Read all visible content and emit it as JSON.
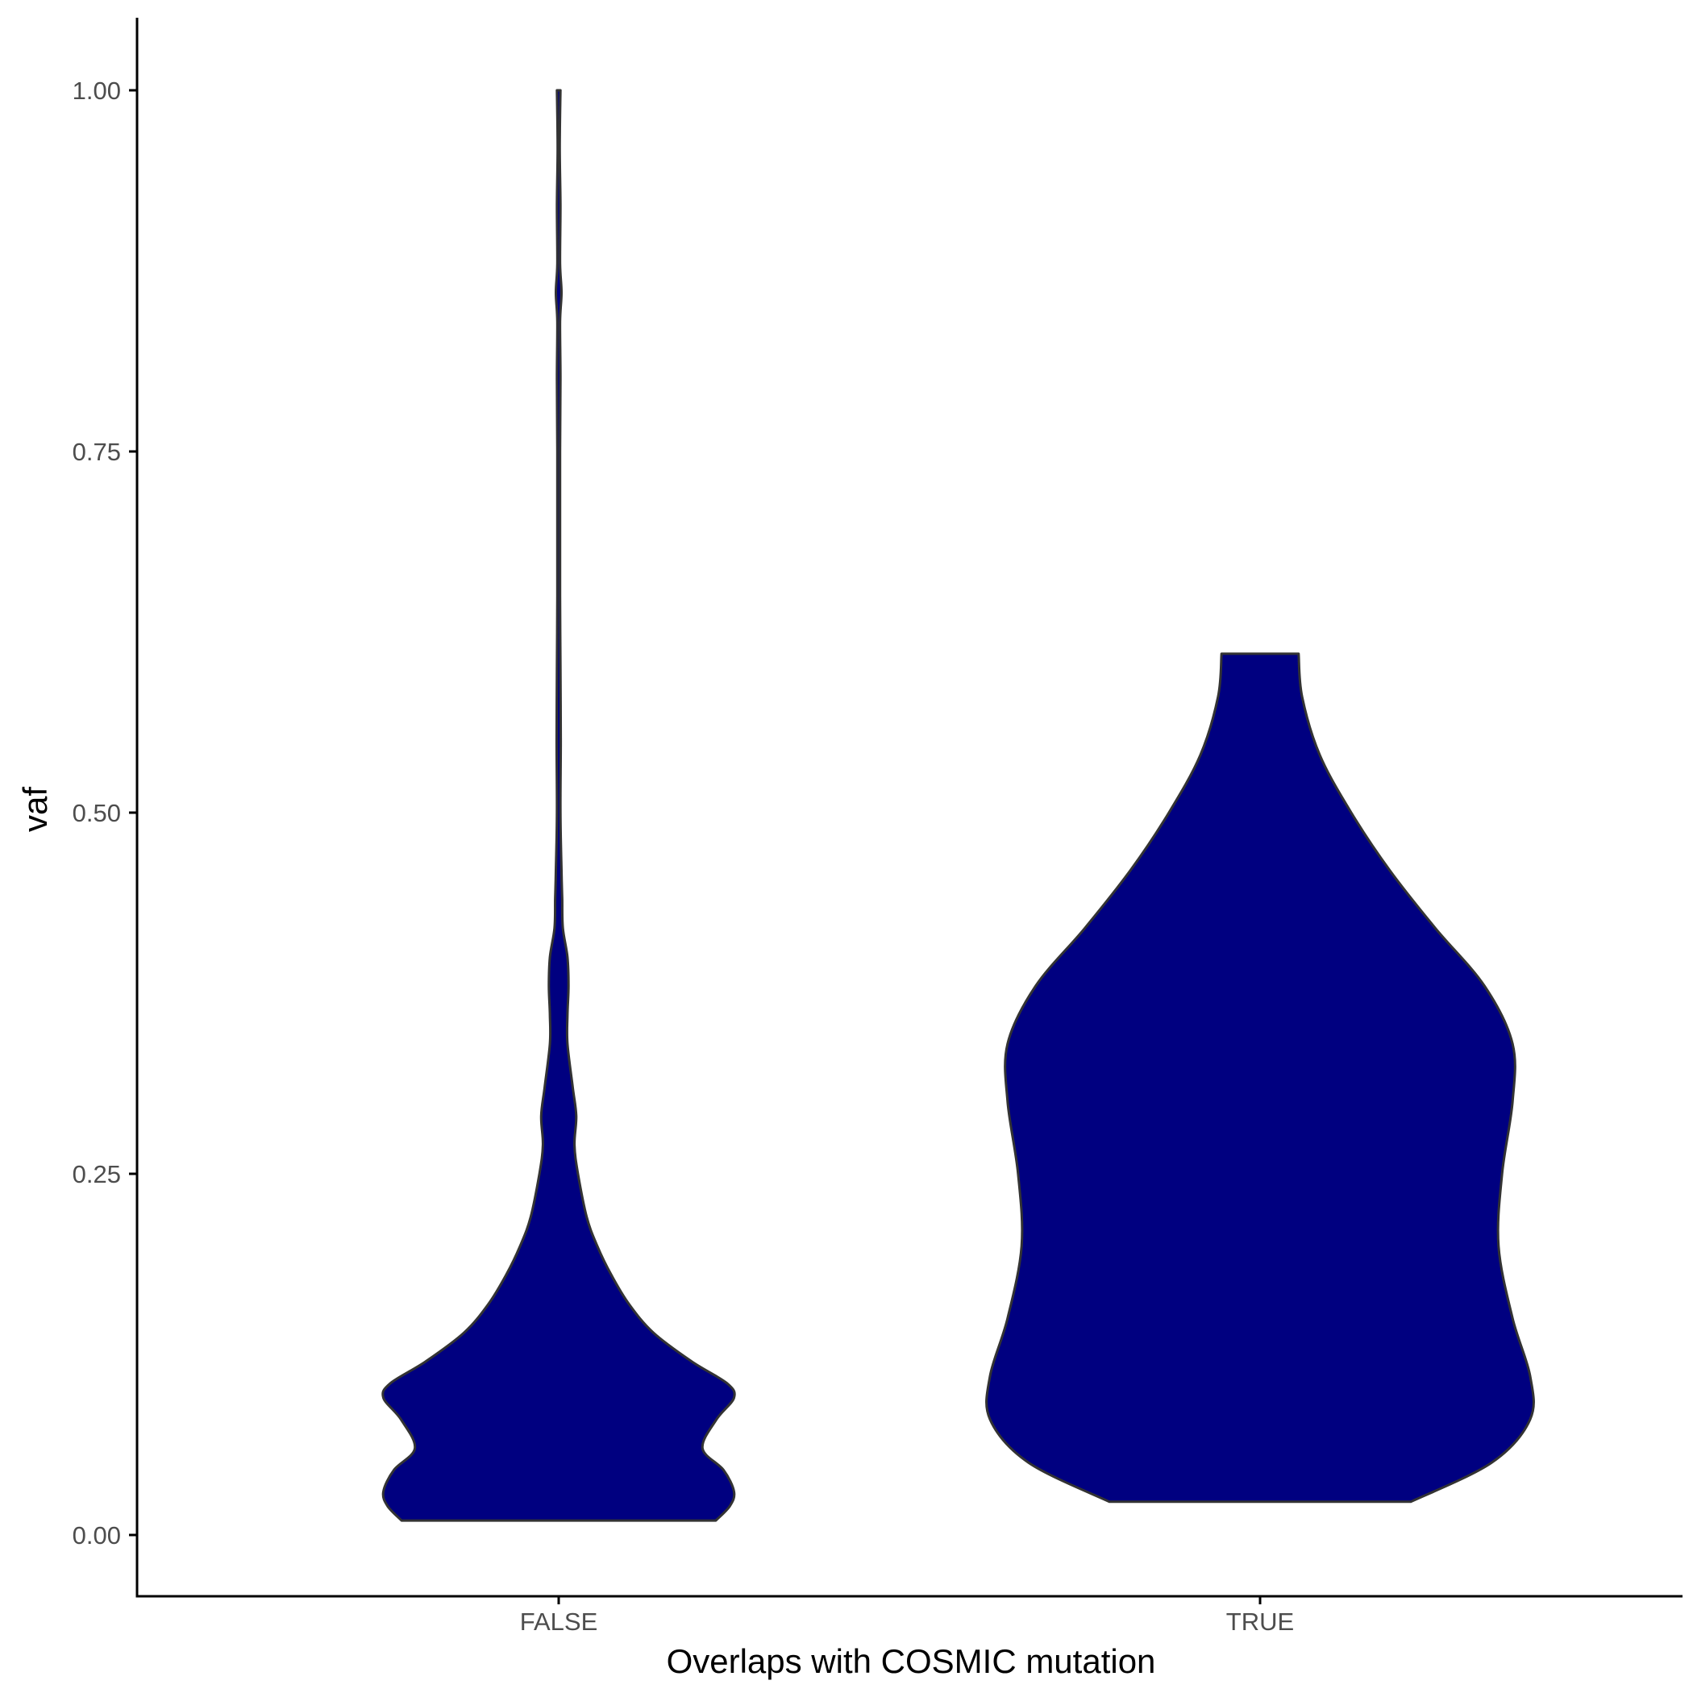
{
  "chart_data": {
    "type": "violin",
    "title": "",
    "xlabel": "Overlaps with COSMIC mutation",
    "ylabel": "vaf",
    "categories": [
      "FALSE",
      "TRUE"
    ],
    "ylim": [
      -0.035,
      1.05
    ],
    "yticks": [
      0.0,
      0.25,
      0.5,
      0.75,
      1.0
    ],
    "ytick_labels": [
      "0.00",
      "0.25",
      "0.50",
      "0.75",
      "1.00"
    ],
    "grid": false,
    "legend": "none",
    "fill_color": "#000080",
    "outline_color": "#333333",
    "series": [
      {
        "category": "FALSE",
        "min": 0.01,
        "max": 1.0,
        "density_profile": [
          [
            0.01,
            0.448
          ],
          [
            0.02,
            0.488
          ],
          [
            0.03,
            0.5
          ],
          [
            0.045,
            0.47
          ],
          [
            0.06,
            0.41
          ],
          [
            0.08,
            0.45
          ],
          [
            0.095,
            0.5
          ],
          [
            0.105,
            0.48
          ],
          [
            0.12,
            0.38
          ],
          [
            0.14,
            0.27
          ],
          [
            0.16,
            0.2
          ],
          [
            0.18,
            0.15
          ],
          [
            0.2,
            0.11
          ],
          [
            0.22,
            0.08
          ],
          [
            0.25,
            0.055
          ],
          [
            0.27,
            0.045
          ],
          [
            0.29,
            0.05
          ],
          [
            0.31,
            0.04
          ],
          [
            0.34,
            0.025
          ],
          [
            0.36,
            0.025
          ],
          [
            0.38,
            0.028
          ],
          [
            0.4,
            0.025
          ],
          [
            0.42,
            0.012
          ],
          [
            0.44,
            0.01
          ],
          [
            0.46,
            0.008
          ],
          [
            0.5,
            0.005
          ],
          [
            0.55,
            0.006
          ],
          [
            0.6,
            0.005
          ],
          [
            0.65,
            0.004
          ],
          [
            0.7,
            0.004
          ],
          [
            0.75,
            0.004
          ],
          [
            0.8,
            0.005
          ],
          [
            0.84,
            0.004
          ],
          [
            0.86,
            0.008
          ],
          [
            0.88,
            0.004
          ],
          [
            0.92,
            0.005
          ],
          [
            0.96,
            0.003
          ],
          [
            1.0,
            0.005
          ]
        ]
      },
      {
        "category": "TRUE",
        "min": 0.023,
        "max": 0.61,
        "density_profile": [
          [
            0.023,
            0.43
          ],
          [
            0.05,
            0.66
          ],
          [
            0.08,
            0.77
          ],
          [
            0.11,
            0.77
          ],
          [
            0.15,
            0.72
          ],
          [
            0.2,
            0.68
          ],
          [
            0.25,
            0.69
          ],
          [
            0.3,
            0.72
          ],
          [
            0.34,
            0.72
          ],
          [
            0.38,
            0.64
          ],
          [
            0.42,
            0.5
          ],
          [
            0.46,
            0.37
          ],
          [
            0.5,
            0.26
          ],
          [
            0.54,
            0.17
          ],
          [
            0.58,
            0.12
          ],
          [
            0.61,
            0.11
          ]
        ]
      }
    ]
  }
}
